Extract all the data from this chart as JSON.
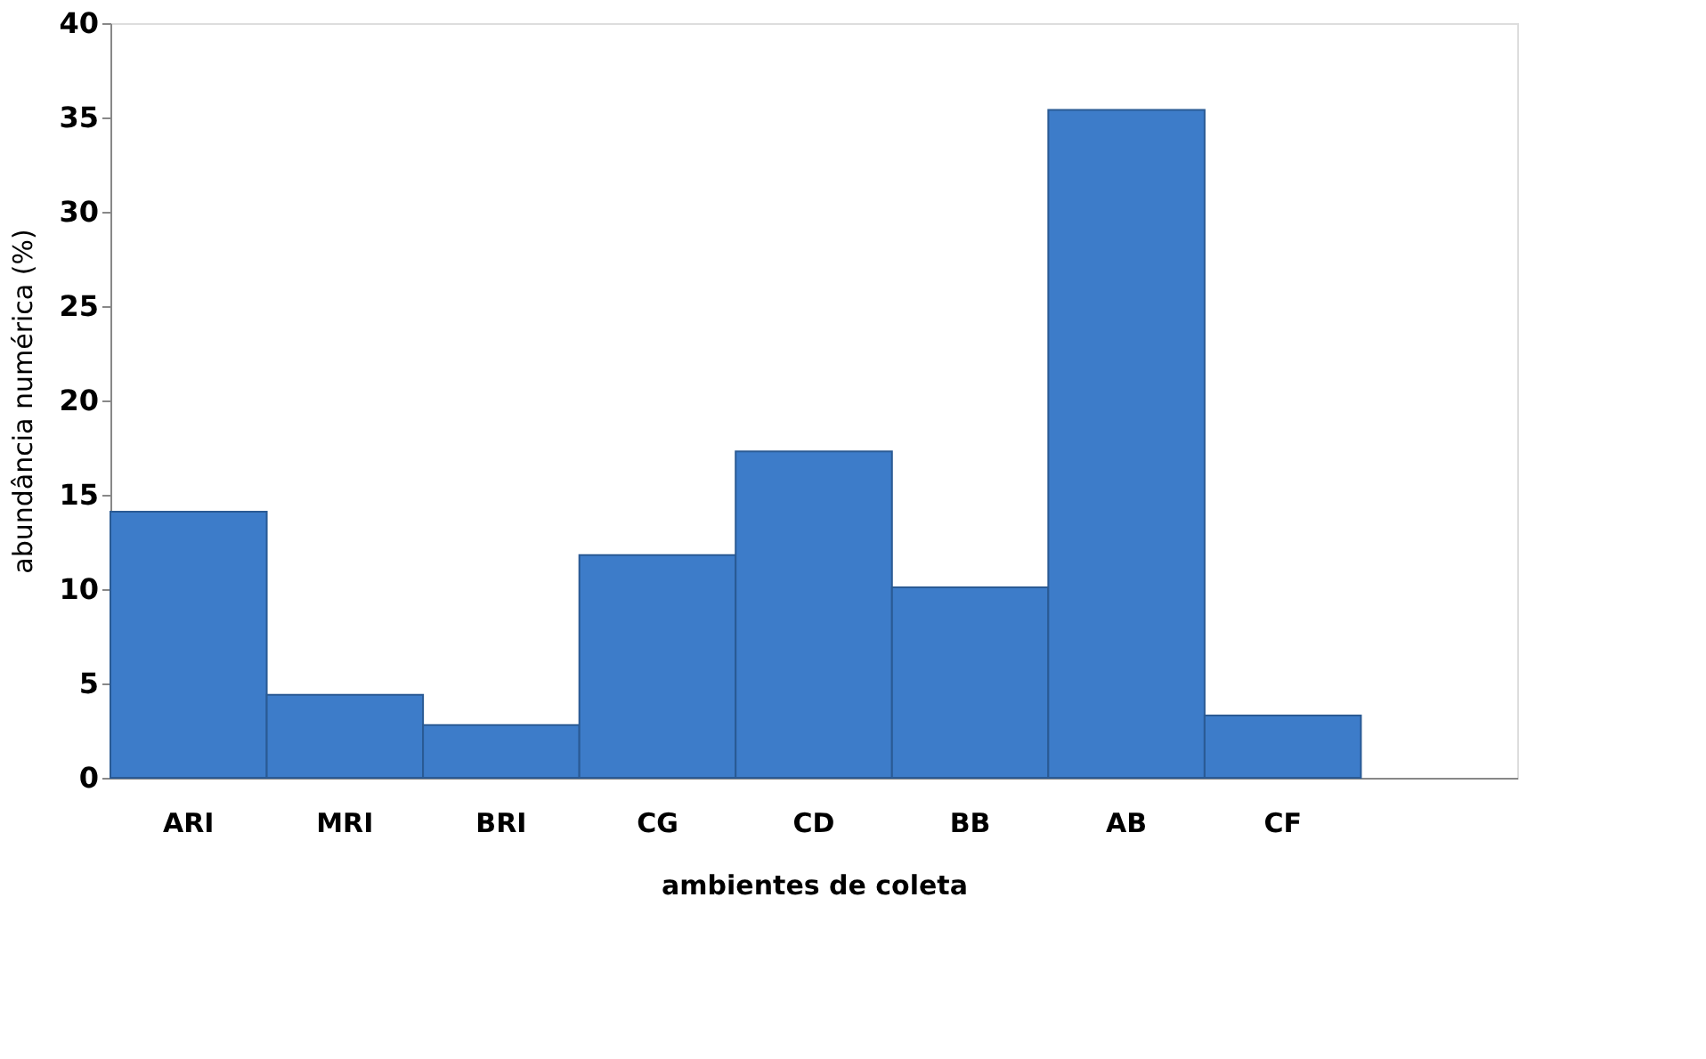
{
  "chart_data": {
    "type": "bar",
    "xlabel": "ambientes de coleta",
    "ylabel": "abundância numérica (%)",
    "categories": [
      "ARI",
      "MRI",
      "BRI",
      "CG",
      "CD",
      "BB",
      "AB",
      "CF",
      null
    ],
    "values": [
      14.1,
      4.4,
      2.8,
      11.8,
      17.3,
      10.1,
      35.4,
      3.3,
      null
    ],
    "color": "#3d7cc9",
    "ylim": [
      0,
      40
    ],
    "yticks": [
      0,
      5,
      10,
      15,
      20,
      25,
      30,
      35,
      40
    ],
    "grid": false
  }
}
